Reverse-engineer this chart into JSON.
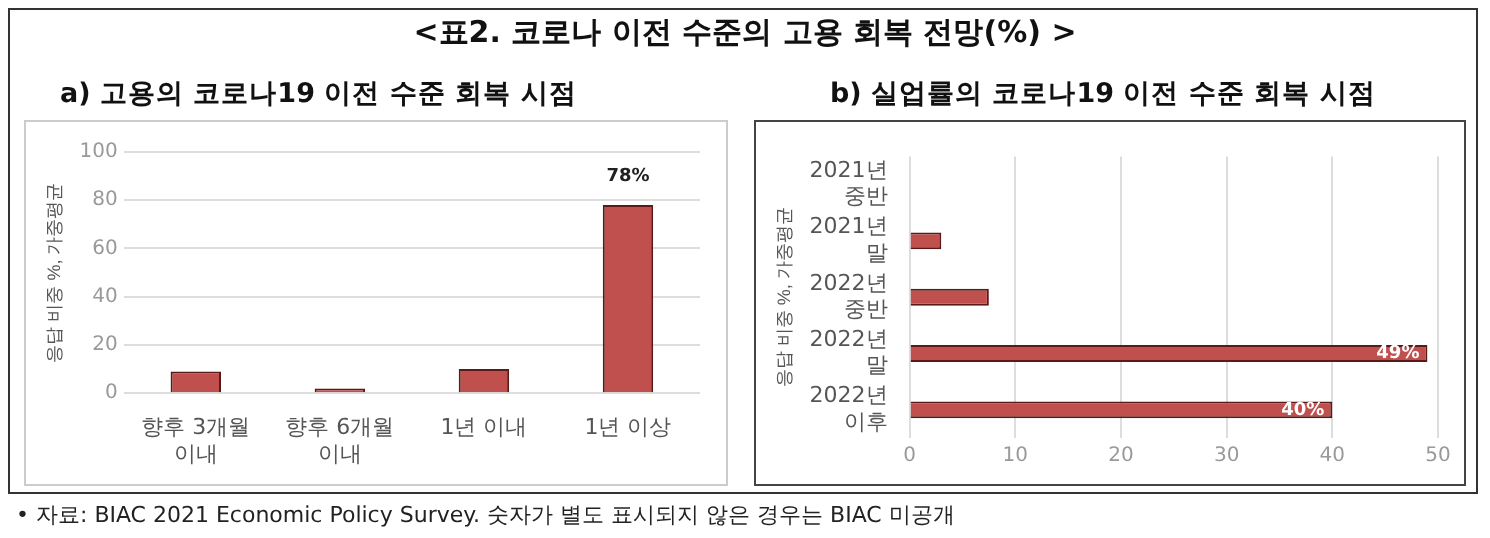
{
  "chart_data": [
    {
      "type": "other",
      "title": "<표2. 코로나 이전 수준의 고용 회복 전망(%) >",
      "annotations": [
        "• 자료: BIAC 2021 Economic Policy Survey. 숫자가 별도 표시되지 않은 경우는 BIAC 미공개"
      ]
    },
    {
      "type": "bar",
      "title": "a) 고용의 코로나19 이전 수준 회복 시점",
      "ylabel": "응답 비중 %, 가중평균",
      "categories": [
        "향후 3개월 이내",
        "향후 6개월 이내",
        "1년 이내",
        "1년 이상"
      ],
      "values": [
        9,
        2,
        10,
        78
      ],
      "value_labels": [
        null,
        null,
        null,
        "78%"
      ],
      "color": "#c0504d",
      "ylim": [
        0,
        100
      ],
      "yticks": [
        0,
        20,
        40,
        60,
        80,
        100
      ],
      "grid": "y"
    },
    {
      "type": "bar",
      "orientation": "horizontal",
      "title": "b) 실업률의 코로나19 이전 수준 회복 시점",
      "ylabel": "응답 비중 %, 가중평균",
      "categories": [
        "2021년 중반",
        "2021년 말",
        "2022년 중반",
        "2022년 말",
        "2022년 이후"
      ],
      "values": [
        0,
        3,
        7.5,
        49,
        40
      ],
      "value_labels": [
        null,
        null,
        null,
        "49%",
        "40%"
      ],
      "color": "#c0504d",
      "xlim": [
        0,
        50
      ],
      "xticks": [
        0,
        10,
        20,
        30,
        40,
        50
      ],
      "grid": "x"
    }
  ]
}
